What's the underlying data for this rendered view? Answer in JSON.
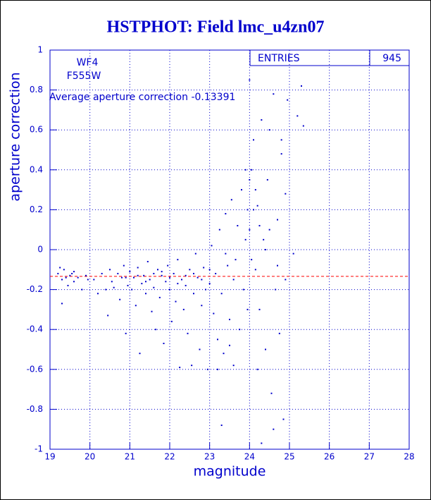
{
  "chart_data": {
    "type": "scatter",
    "title": "HSTPHOT: Field lmc_u4zn07",
    "xlabel": "magnitude",
    "ylabel": "aperture correction",
    "annotations": [
      "WF4",
      "F555W",
      "Average aperture correction -0.13391"
    ],
    "stats": {
      "label": "ENTRIES",
      "value": 945
    },
    "reference_line": {
      "value": -0.13391,
      "color": "#ff0000"
    },
    "color": "#0000cc",
    "grid": true,
    "xlim": [
      19,
      28
    ],
    "xticks": [
      19,
      20,
      21,
      22,
      23,
      24,
      25,
      26,
      27,
      28
    ],
    "ylim": [
      -1,
      1
    ],
    "yticks": [
      -1,
      -0.8,
      -0.6,
      -0.4,
      -0.2,
      0,
      0.2,
      0.4,
      0.6,
      0.8,
      1
    ],
    "x": [
      19.2,
      19.3,
      19.35,
      19.4,
      19.45,
      19.5,
      19.55,
      19.6,
      19.7,
      19.8,
      19.9,
      19.95,
      19.3,
      19.6,
      19.25,
      20.1,
      20.2,
      20.3,
      20.4,
      20.45,
      20.5,
      20.55,
      20.6,
      20.7,
      20.75,
      20.8,
      20.85,
      20.9,
      20.95,
      21.0,
      21.05,
      21.1,
      21.15,
      21.2,
      21.25,
      21.3,
      21.35,
      21.4,
      21.45,
      21.5,
      21.55,
      21.6,
      21.65,
      21.7,
      21.75,
      21.8,
      21.85,
      21.9,
      21.95,
      22.0,
      22.05,
      22.1,
      22.15,
      22.2,
      22.25,
      22.3,
      22.35,
      22.4,
      22.45,
      22.5,
      22.55,
      22.6,
      22.65,
      22.7,
      22.75,
      22.8,
      22.85,
      22.9,
      22.95,
      23.0,
      23.05,
      23.1,
      23.15,
      23.2,
      23.25,
      23.3,
      23.35,
      23.4,
      23.45,
      23.5,
      23.55,
      23.6,
      23.65,
      23.7,
      23.75,
      23.8,
      23.85,
      23.9,
      23.95,
      21.2,
      21.6,
      22.0,
      22.4,
      22.8,
      20.9,
      21.4,
      21.8,
      22.2,
      22.6,
      23.0,
      23.4,
      23.2,
      23.3,
      23.6,
      23.5,
      24.0,
      24.05,
      24.1,
      24.15,
      24.2,
      24.25,
      24.3,
      24.35,
      24.4,
      24.45,
      24.5,
      24.55,
      24.6,
      24.65,
      24.7,
      24.75,
      24.8,
      24.85,
      24.9,
      24.95,
      24.0,
      24.05,
      24.1,
      24.2,
      24.3,
      24.4,
      24.5,
      24.6,
      24.7,
      24.8,
      24.9,
      25.2,
      25.3,
      25.35,
      25.1,
      24.0,
      23.95,
      23.9,
      24.15,
      24.25
    ],
    "values": [
      -0.12,
      -0.15,
      -0.1,
      -0.14,
      -0.18,
      -0.13,
      -0.12,
      -0.16,
      -0.14,
      -0.2,
      -0.13,
      -0.15,
      -0.27,
      -0.11,
      -0.09,
      -0.15,
      -0.22,
      -0.12,
      -0.2,
      -0.33,
      -0.1,
      -0.16,
      -0.19,
      -0.12,
      -0.25,
      -0.14,
      -0.08,
      -0.42,
      -0.18,
      -0.11,
      -0.2,
      -0.14,
      -0.28,
      -0.09,
      -0.52,
      -0.17,
      -0.13,
      -0.22,
      -0.06,
      -0.15,
      -0.31,
      -0.19,
      -0.4,
      -0.1,
      -0.24,
      -0.13,
      -0.47,
      -0.16,
      -0.08,
      -0.2,
      -0.36,
      -0.12,
      -0.26,
      -0.05,
      -0.59,
      -0.15,
      -0.3,
      -0.18,
      -0.42,
      -0.1,
      -0.58,
      -0.22,
      -0.02,
      -0.14,
      -0.5,
      -0.28,
      -0.09,
      -0.2,
      -0.6,
      -0.17,
      0.02,
      -0.32,
      -0.12,
      -0.45,
      0.1,
      -0.22,
      -0.52,
      0.18,
      -0.08,
      -0.35,
      0.25,
      -0.15,
      -0.05,
      0.12,
      -0.4,
      0.3,
      -0.2,
      0.05,
      -0.3,
      -0.13,
      -0.12,
      -0.14,
      -0.13,
      -0.15,
      -0.14,
      -0.16,
      -0.11,
      -0.17,
      -0.12,
      -0.1,
      -0.02,
      -0.6,
      -0.88,
      -0.58,
      -0.48,
      0.85,
      0.4,
      0.2,
      -0.1,
      0.22,
      -0.3,
      0.65,
      0.05,
      -0.5,
      0.35,
      0.1,
      -0.72,
      0.78,
      -0.2,
      0.15,
      -0.42,
      0.55,
      -0.85,
      0.28,
      0.75,
      0.35,
      -0.05,
      0.55,
      -0.6,
      -0.97,
      0.0,
      0.6,
      -0.9,
      -0.08,
      0.48,
      -0.15,
      0.67,
      0.82,
      0.62,
      -0.02,
      0.1,
      0.2,
      0.4,
      0.3,
      0.12
    ]
  }
}
